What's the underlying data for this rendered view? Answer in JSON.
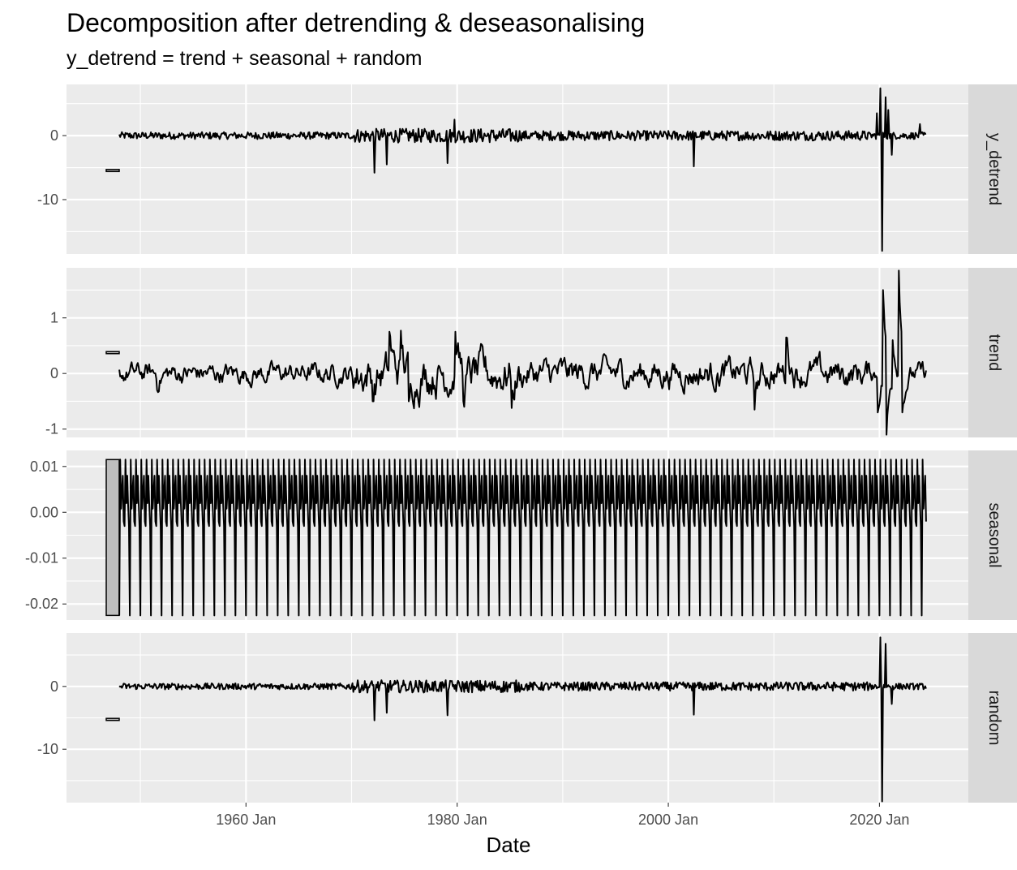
{
  "chart": {
    "title": "Decomposition after detrending & deseasonalising",
    "subtitle": "y_detrend = trend + seasonal + random",
    "xlabel": "Date",
    "x_ticks": [
      "1960 Jan",
      "1980 Jan",
      "2000 Jan",
      "2020 Jan"
    ]
  },
  "colors": {
    "panel_bg": "#ebebeb",
    "grid": "#ffffff",
    "strip_bg": "#d9d9d9",
    "line": "#000000",
    "range_bar_fill": "#bebebe"
  },
  "chart_data": {
    "type": "line",
    "x_range": [
      "1943-01",
      "2028-06"
    ],
    "x_ticks": [
      "1960 Jan",
      "1980 Jan",
      "2000 Jan",
      "2020 Jan"
    ],
    "series_start": "1948-01",
    "series_end": "2024-06",
    "frequency": "monthly",
    "panels": [
      {
        "name": "y_detrend",
        "ylim": [
          -18.5,
          8
        ],
        "y_ticks": [
          0,
          -10
        ],
        "y_tick_labels": [
          "0",
          "-10"
        ],
        "base_amplitude": 0.5,
        "events": [
          {
            "date": "1972-03",
            "value": -5.8
          },
          {
            "date": "1973-05",
            "value": -4.5
          },
          {
            "date": "1979-02",
            "value": -4.3
          },
          {
            "date": "1979-10",
            "value": 2.5
          },
          {
            "date": "2002-06",
            "value": -4.8
          },
          {
            "date": "2019-10",
            "value": 3.5
          },
          {
            "date": "2020-02",
            "value": 7.4
          },
          {
            "date": "2020-04",
            "value": -18.0
          },
          {
            "date": "2020-08",
            "value": 6.0
          },
          {
            "date": "2020-11",
            "value": 4.0
          },
          {
            "date": "2021-03",
            "value": -3.0
          },
          {
            "date": "2023-11",
            "value": 1.8
          }
        ],
        "range_bar": [
          -5.5,
          -5.4
        ]
      },
      {
        "name": "trend",
        "ylim": [
          -1.15,
          1.9
        ],
        "y_ticks": [
          1,
          0,
          -1
        ],
        "y_tick_labels": [
          "1",
          "0",
          "-1"
        ],
        "base_amplitude": 0.15,
        "events": [
          {
            "date": "1951-08",
            "value": -0.3
          },
          {
            "date": "1972-01",
            "value": -0.5
          },
          {
            "date": "1973-08",
            "value": 0.75
          },
          {
            "date": "1974-09",
            "value": 0.77
          },
          {
            "date": "1975-06",
            "value": -0.5
          },
          {
            "date": "1979-11",
            "value": 0.75
          },
          {
            "date": "1980-08",
            "value": -0.5
          },
          {
            "date": "1985-03",
            "value": -0.62
          },
          {
            "date": "2008-03",
            "value": -0.65
          },
          {
            "date": "2011-03",
            "value": 0.65
          },
          {
            "date": "2019-11",
            "value": -0.7
          },
          {
            "date": "2020-05",
            "value": 1.5
          },
          {
            "date": "2020-09",
            "value": -1.1
          },
          {
            "date": "2021-04",
            "value": 0.6
          },
          {
            "date": "2021-11",
            "value": 1.85
          },
          {
            "date": "2022-03",
            "value": -0.7
          }
        ],
        "range_bar": [
          0.36,
          0.39
        ]
      },
      {
        "name": "seasonal",
        "ylim": [
          -0.0235,
          0.0135
        ],
        "y_ticks": [
          0.01,
          0.0,
          -0.01,
          -0.02
        ],
        "y_tick_labels": [
          "0.01",
          "0.00",
          "-0.01",
          "-0.02"
        ],
        "monthly_pattern": [
          -0.0225,
          0.0115,
          0.0008,
          0.0045,
          0.008,
          -0.002,
          -0.003,
          0.0115,
          0.002,
          0.008,
          0.002,
          -0.003
        ],
        "range_bar": [
          -0.0225,
          0.0115
        ]
      },
      {
        "name": "random",
        "ylim": [
          -18.5,
          8.5
        ],
        "y_ticks": [
          0,
          -10
        ],
        "y_tick_labels": [
          "0",
          "-10"
        ],
        "base_amplitude": 0.45,
        "events": [
          {
            "date": "1972-03",
            "value": -5.4
          },
          {
            "date": "1973-05",
            "value": -4.2
          },
          {
            "date": "1979-02",
            "value": -4.6
          },
          {
            "date": "2002-06",
            "value": -4.5
          },
          {
            "date": "2020-02",
            "value": 7.8
          },
          {
            "date": "2020-04",
            "value": -18.3
          },
          {
            "date": "2020-08",
            "value": 6.8
          },
          {
            "date": "2021-03",
            "value": -2.8
          }
        ],
        "range_bar": [
          -5.3,
          -5.2
        ]
      }
    ]
  }
}
